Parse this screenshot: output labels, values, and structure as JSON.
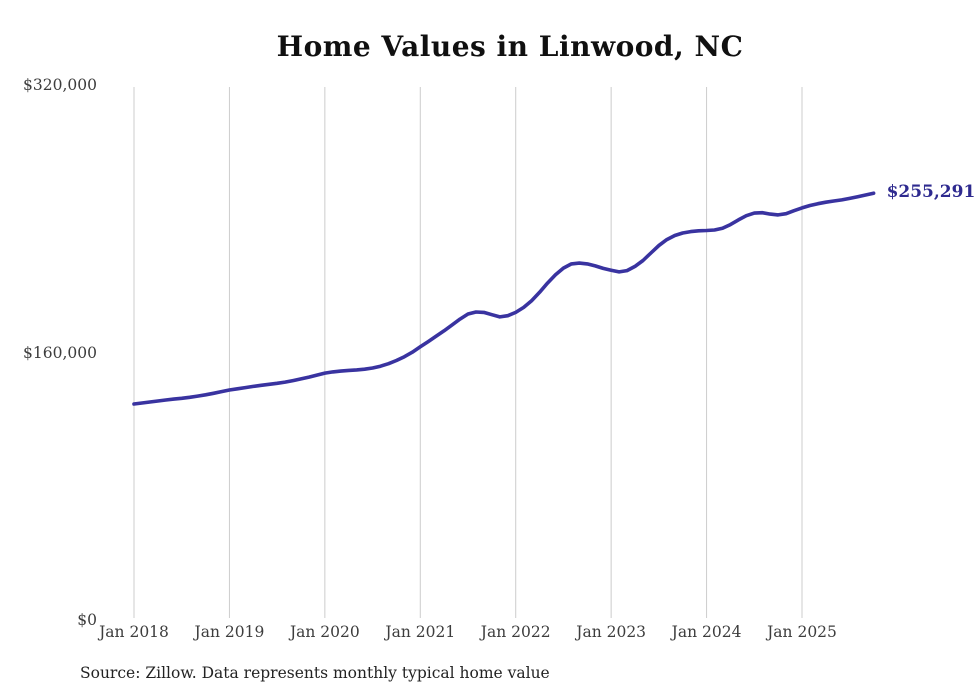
{
  "chart_data": {
    "type": "line",
    "title": "Home Values in Linwood, NC",
    "source": "Source: Zillow. Data represents monthly typical home value",
    "end_label": "$255,291",
    "latest_value": 255291,
    "xlabel": "",
    "ylabel": "",
    "grid": "vertical-only",
    "legend": "none",
    "x": [
      "2018-01",
      "2018-02",
      "2018-03",
      "2018-04",
      "2018-05",
      "2018-06",
      "2018-07",
      "2018-08",
      "2018-09",
      "2018-10",
      "2018-11",
      "2018-12",
      "2019-01",
      "2019-02",
      "2019-03",
      "2019-04",
      "2019-05",
      "2019-06",
      "2019-07",
      "2019-08",
      "2019-09",
      "2019-10",
      "2019-11",
      "2019-12",
      "2020-01",
      "2020-02",
      "2020-03",
      "2020-04",
      "2020-05",
      "2020-06",
      "2020-07",
      "2020-08",
      "2020-09",
      "2020-10",
      "2020-11",
      "2020-12",
      "2021-01",
      "2021-02",
      "2021-03",
      "2021-04",
      "2021-05",
      "2021-06",
      "2021-07",
      "2021-08",
      "2021-09",
      "2021-10",
      "2021-11",
      "2021-12",
      "2022-01",
      "2022-02",
      "2022-03",
      "2022-04",
      "2022-05",
      "2022-06",
      "2022-07",
      "2022-08",
      "2022-09",
      "2022-10",
      "2022-11",
      "2022-12",
      "2023-01",
      "2023-02",
      "2023-03",
      "2023-04",
      "2023-05",
      "2023-06",
      "2023-07",
      "2023-08",
      "2023-09",
      "2023-10",
      "2023-11",
      "2023-12",
      "2024-01",
      "2024-02",
      "2024-03",
      "2024-04",
      "2024-05",
      "2024-06",
      "2024-07",
      "2024-08",
      "2024-09",
      "2024-10",
      "2024-11",
      "2024-12",
      "2025-01",
      "2025-02",
      "2025-03",
      "2025-04",
      "2025-05",
      "2025-06",
      "2025-07",
      "2025-08",
      "2025-09",
      "2025-10"
    ],
    "series": [
      {
        "name": "Typical home value",
        "values": [
          129200,
          129800,
          130400,
          131000,
          131600,
          132100,
          132600,
          133200,
          133900,
          134700,
          135600,
          136600,
          137600,
          138300,
          139000,
          139700,
          140400,
          141000,
          141600,
          142300,
          143200,
          144200,
          145300,
          146500,
          147700,
          148400,
          148900,
          149300,
          149600,
          150000,
          150700,
          151800,
          153300,
          155200,
          157500,
          160200,
          163400,
          166500,
          169800,
          173000,
          176500,
          180000,
          183000,
          184200,
          184000,
          182600,
          181300,
          182000,
          184000,
          187000,
          191000,
          196000,
          201500,
          206500,
          210500,
          213000,
          213500,
          213000,
          211800,
          210300,
          209200,
          208200,
          209000,
          211500,
          215000,
          219500,
          224000,
          227500,
          230000,
          231500,
          232300,
          232800,
          233000,
          233300,
          234300,
          236500,
          239300,
          241800,
          243400,
          243600,
          242800,
          242300,
          243000,
          244800,
          246500,
          247900,
          249000,
          249900,
          250600,
          251300,
          252200,
          253200,
          254200,
          255291
        ]
      }
    ],
    "x_axis": {
      "ticks": [
        "Jan 2018",
        "Jan 2019",
        "Jan 2020",
        "Jan 2021",
        "Jan 2022",
        "Jan 2023",
        "Jan 2024",
        "Jan 2025"
      ]
    },
    "y_axis": {
      "ticks": [
        {
          "label": "$320,000",
          "value": 320000
        },
        {
          "label": "$160,000",
          "value": 160000
        },
        {
          "label": "$0",
          "value": 0
        }
      ],
      "range": [
        0,
        320000
      ]
    }
  },
  "colors": {
    "line": "#3933a0",
    "end_label": "#2e2a8f",
    "grid": "#cccccc",
    "axis_text": "#3d3d3d",
    "title": "#101010",
    "source_text": "#232323",
    "background": "#ffffff"
  }
}
